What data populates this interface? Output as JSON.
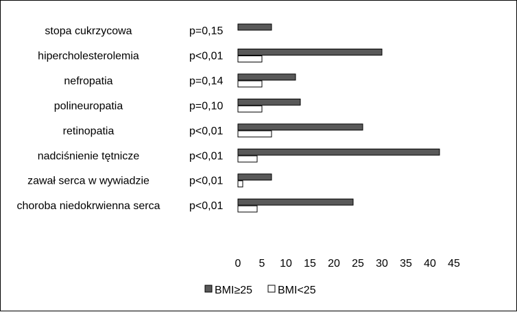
{
  "chart_data": {
    "type": "bar",
    "orientation": "horizontal",
    "categories": [
      "stopa cukrzycowa",
      "hipercholesterolemia",
      "nefropatia",
      "polineuropatia",
      "retinopatia",
      "nadciśnienie tętnicze",
      "zawał serca w wywiadzie",
      "choroba niedokrwienna serca"
    ],
    "p_values": [
      "p=0,15",
      "p<0,01",
      "p=0,14",
      "p=0,10",
      "p<0,01",
      "p<0,01",
      "p<0,01",
      "p<0,01"
    ],
    "series": [
      {
        "name": "BMI≥25",
        "color": "#595959",
        "values": [
          7,
          30,
          12,
          13,
          26,
          42,
          7,
          24
        ]
      },
      {
        "name": "BMI<25",
        "color": "#ffffff",
        "values": [
          0,
          5,
          5,
          5,
          7,
          4,
          1,
          4
        ]
      }
    ],
    "xlim": [
      0,
      45
    ],
    "xticks": [
      0,
      5,
      10,
      15,
      20,
      25,
      30,
      35,
      40,
      45
    ],
    "grid": false,
    "legend_position": "bottom-center",
    "title": "",
    "xlabel": "",
    "ylabel": ""
  }
}
